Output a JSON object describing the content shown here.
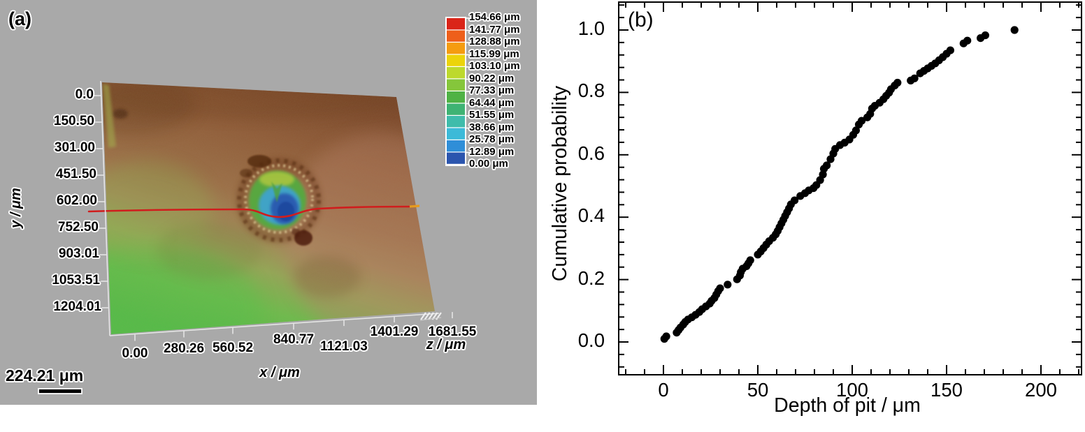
{
  "panel_a": {
    "label": "(a)",
    "y_axis": {
      "title": "y / μm",
      "ticks": [
        "0.0",
        "150.50",
        "301.00",
        "451.50",
        "602.00",
        "752.50",
        "903.01",
        "1053.51",
        "1204.01"
      ]
    },
    "x_axis": {
      "title": "x / μm",
      "ticks": [
        "0.00",
        "280.26",
        "560.52",
        "840.77",
        "1121.03",
        "1401.29",
        "1681.55"
      ]
    },
    "z_axis": {
      "title": "z / μm"
    },
    "legend": {
      "labels": [
        "154.66 μm",
        "141.77 μm",
        "128.88 μm",
        "115.99 μm",
        "103.10 μm",
        "90.22 μm",
        "77.33 μm",
        "64.44 μm",
        "51.55 μm",
        "38.66 μm",
        "25.78 μm",
        "12.89 μm",
        "0.00 μm"
      ],
      "cell_colors": [
        "#da2418",
        "#ee5f1a",
        "#f59c10",
        "#ecd40a",
        "#bdd92d",
        "#85c63b",
        "#4fb245",
        "#3eb373",
        "#3fbcab",
        "#3cbad8",
        "#2f8ed8",
        "#2b55ae"
      ]
    },
    "scale_bar": {
      "label": "224.21 μm"
    },
    "colors": {
      "background": "#a9a9a9",
      "surface_brown_dark": "#7a4527",
      "surface_brown": "#9c6f46",
      "surface_tan_pink": "#b88168",
      "surface_green": "#52ba45",
      "pit_rim_yellow_green": "#a9c441",
      "pit_green": "#57a93f",
      "pit_cyan": "#3fa3c6",
      "pit_blue": "#2b5cb0",
      "dark_corrosion": "#53290f",
      "profile_line_red": "#d01d1d",
      "profile_tip_yellow": "#e69a1e"
    }
  },
  "panel_b": {
    "label": "(b)"
  },
  "chart_data": {
    "type": "scatter",
    "title": "",
    "xlabel": "Depth of pit / μm",
    "ylabel": "Cumulative probability",
    "xlim": [
      -25,
      222
    ],
    "ylim": [
      -0.105,
      1.09
    ],
    "x_tick_values": [
      0,
      50,
      100,
      150,
      200
    ],
    "x_tick_labels": [
      "0",
      "50",
      "100",
      "150",
      "200"
    ],
    "y_tick_values": [
      0.0,
      0.2,
      0.4,
      0.6,
      0.8,
      1.0
    ],
    "y_tick_labels": [
      "0.0",
      "0.2",
      "0.4",
      "0.6",
      "0.8",
      "1.0"
    ],
    "x_minor_step": 10,
    "y_minor_step": 0.04,
    "grid": false,
    "legend_position": "none",
    "marker": {
      "shape": "circle",
      "color": "#000000",
      "radius_px": 5.6
    },
    "points": [
      [
        0.5,
        0.01
      ],
      [
        1.5,
        0.018
      ],
      [
        7,
        0.03
      ],
      [
        8,
        0.038
      ],
      [
        9,
        0.046
      ],
      [
        10.5,
        0.056
      ],
      [
        11.5,
        0.064
      ],
      [
        13,
        0.072
      ],
      [
        15,
        0.079
      ],
      [
        17,
        0.087
      ],
      [
        19,
        0.096
      ],
      [
        20.5,
        0.105
      ],
      [
        22.5,
        0.114
      ],
      [
        24.5,
        0.123
      ],
      [
        25.5,
        0.132
      ],
      [
        27,
        0.141
      ],
      [
        28,
        0.152
      ],
      [
        29,
        0.163
      ],
      [
        30,
        0.172
      ],
      [
        34,
        0.184
      ],
      [
        39,
        0.201
      ],
      [
        40.5,
        0.213
      ],
      [
        41,
        0.224
      ],
      [
        42,
        0.235
      ],
      [
        44,
        0.243
      ],
      [
        45,
        0.252
      ],
      [
        46,
        0.262
      ],
      [
        50,
        0.28
      ],
      [
        51.5,
        0.29
      ],
      [
        53,
        0.301
      ],
      [
        54.5,
        0.312
      ],
      [
        56,
        0.323
      ],
      [
        58,
        0.334
      ],
      [
        59.5,
        0.345
      ],
      [
        60.5,
        0.356
      ],
      [
        61.5,
        0.368
      ],
      [
        62.5,
        0.38
      ],
      [
        63.5,
        0.392
      ],
      [
        64.5,
        0.404
      ],
      [
        65.5,
        0.416
      ],
      [
        66.5,
        0.428
      ],
      [
        67.5,
        0.441
      ],
      [
        69.5,
        0.454
      ],
      [
        72.5,
        0.468
      ],
      [
        75,
        0.477
      ],
      [
        77,
        0.486
      ],
      [
        79.5,
        0.493
      ],
      [
        81,
        0.503
      ],
      [
        83,
        0.519
      ],
      [
        84.5,
        0.537
      ],
      [
        85,
        0.555
      ],
      [
        86.5,
        0.566
      ],
      [
        88.5,
        0.586
      ],
      [
        90,
        0.604
      ],
      [
        91,
        0.619
      ],
      [
        93.5,
        0.631
      ],
      [
        96,
        0.639
      ],
      [
        98.5,
        0.649
      ],
      [
        100.5,
        0.664
      ],
      [
        102,
        0.678
      ],
      [
        103.5,
        0.697
      ],
      [
        105,
        0.709
      ],
      [
        108,
        0.72
      ],
      [
        109.5,
        0.731
      ],
      [
        110.5,
        0.748
      ],
      [
        112,
        0.757
      ],
      [
        114.5,
        0.767
      ],
      [
        116.5,
        0.778
      ],
      [
        118,
        0.789
      ],
      [
        119.5,
        0.799
      ],
      [
        120.5,
        0.81
      ],
      [
        122.5,
        0.822
      ],
      [
        124,
        0.831
      ],
      [
        131,
        0.838
      ],
      [
        133,
        0.845
      ],
      [
        136,
        0.861
      ],
      [
        138,
        0.869
      ],
      [
        140,
        0.877
      ],
      [
        142,
        0.885
      ],
      [
        144,
        0.893
      ],
      [
        146,
        0.903
      ],
      [
        148,
        0.913
      ],
      [
        150,
        0.924
      ],
      [
        152,
        0.935
      ],
      [
        159,
        0.957
      ],
      [
        161,
        0.966
      ],
      [
        168,
        0.974
      ],
      [
        170.5,
        0.983
      ],
      [
        186,
        1.0
      ]
    ]
  }
}
